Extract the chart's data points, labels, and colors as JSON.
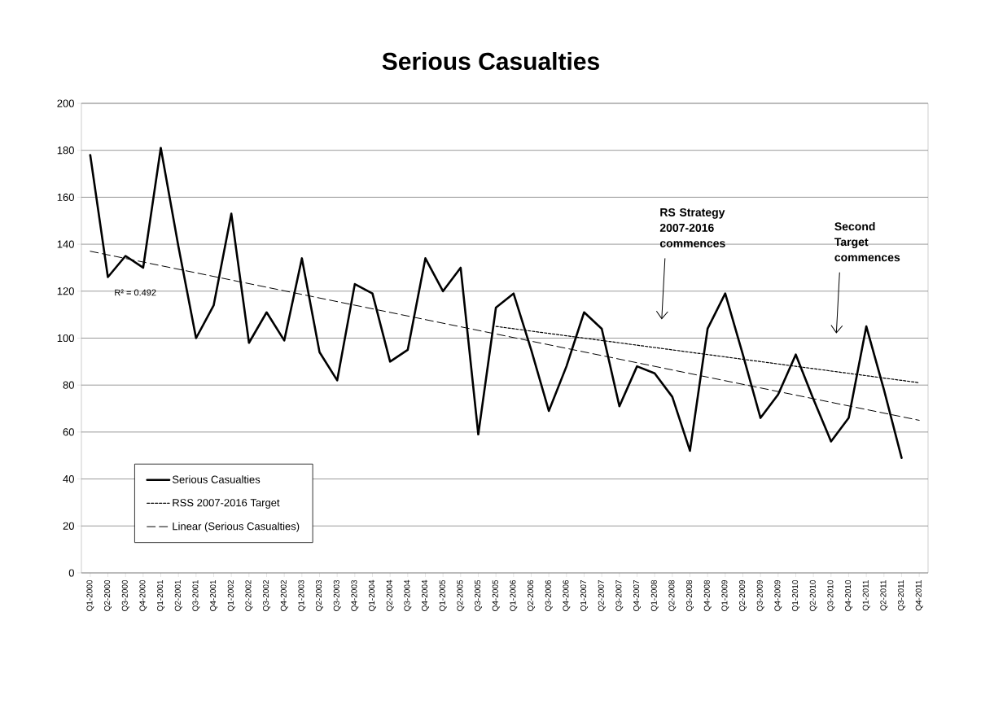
{
  "chart_data": {
    "type": "line",
    "title": "Serious Casualties",
    "categories": [
      "Q1-2000",
      "Q2-2000",
      "Q3-2000",
      "Q4-2000",
      "Q1-2001",
      "Q2-2001",
      "Q3-2001",
      "Q4-2001",
      "Q1-2002",
      "Q2-2002",
      "Q3-2002",
      "Q4-2002",
      "Q1-2003",
      "Q2-2003",
      "Q3-2003",
      "Q4-2003",
      "Q1-2004",
      "Q2-2004",
      "Q3-2004",
      "Q4-2004",
      "Q1-2005",
      "Q2-2005",
      "Q3-2005",
      "Q4-2005",
      "Q1-2006",
      "Q2-2006",
      "Q3-2006",
      "Q4-2006",
      "Q1-2007",
      "Q2-2007",
      "Q3-2007",
      "Q4-2007",
      "Q1-2008",
      "Q2-2008",
      "Q3-2008",
      "Q4-2008",
      "Q1-2009",
      "Q2-2009",
      "Q3-2009",
      "Q4-2009",
      "Q1-2010",
      "Q2-2010",
      "Q3-2010",
      "Q4-2010",
      "Q1-2011",
      "Q2-2011",
      "Q3-2011",
      "Q4-2011"
    ],
    "series": [
      {
        "name": "Serious Casualties",
        "color": "#000000",
        "line_style": "solid",
        "values": [
          178,
          126,
          135,
          130,
          181,
          139,
          100,
          114,
          153,
          98,
          111,
          99,
          134,
          94,
          82,
          123,
          119,
          90,
          95,
          134,
          120,
          130,
          59,
          113,
          119,
          95,
          69,
          88,
          111,
          104,
          71,
          88,
          85,
          75,
          52,
          104,
          119,
          93,
          66,
          76,
          93,
          74,
          56,
          66,
          105,
          78,
          49,
          null
        ]
      },
      {
        "name": "RSS 2007-2016 Target",
        "color": "#000000",
        "line_style": "dotted",
        "values": [
          null,
          null,
          null,
          null,
          null,
          null,
          null,
          null,
          null,
          null,
          null,
          null,
          null,
          null,
          null,
          null,
          null,
          null,
          null,
          null,
          null,
          null,
          null,
          105,
          104,
          103,
          102,
          101,
          100,
          99,
          98,
          97,
          96,
          95,
          94,
          93,
          92,
          91,
          90,
          89,
          88,
          87,
          86,
          85,
          84,
          83,
          82,
          81
        ]
      },
      {
        "name": "Linear (Serious Casualties)",
        "color": "#000000",
        "line_style": "dashed",
        "x": [
          "Q1-2000",
          "Q4-2011"
        ],
        "values": [
          137,
          65
        ]
      }
    ],
    "ylim": [
      0,
      200
    ],
    "yticks": [
      0,
      20,
      40,
      60,
      80,
      100,
      120,
      140,
      160,
      180,
      200
    ],
    "grid": "y",
    "legend": "bottom left",
    "marker": "none",
    "annotations": [
      "R² = 0.492",
      "RS Strategy 2007-2016 commences",
      "Second Target commences"
    ]
  }
}
